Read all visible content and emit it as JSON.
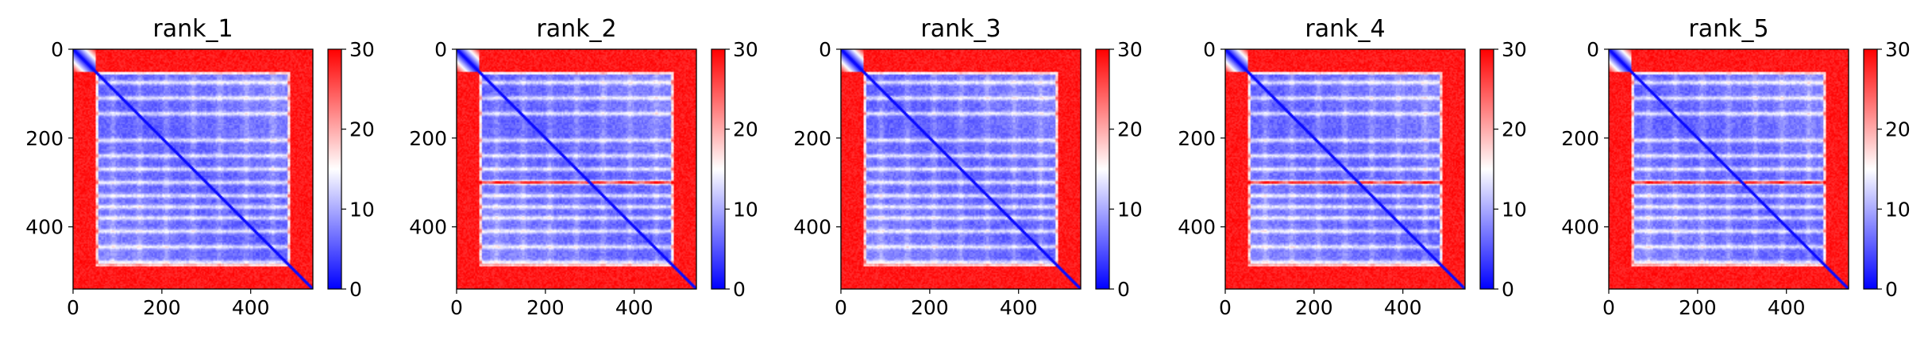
{
  "chart_data": [
    {
      "type": "heatmap",
      "title": "rank_1",
      "xlabel": "",
      "ylabel": "",
      "xlim": [
        0,
        540
      ],
      "ylim": [
        540,
        0
      ],
      "x_ticks": [
        "0",
        "200",
        "400"
      ],
      "y_ticks": [
        "0",
        "200",
        "400"
      ],
      "colorbar": {
        "range": [
          0,
          30
        ],
        "ticks": [
          "0",
          "10",
          "20",
          "30"
        ],
        "colormap": "bwr"
      },
      "matrix_size": 540,
      "edge_region_ends": 50,
      "hot_band_index": null
    },
    {
      "type": "heatmap",
      "title": "rank_2",
      "xlabel": "",
      "ylabel": "",
      "xlim": [
        0,
        540
      ],
      "ylim": [
        540,
        0
      ],
      "x_ticks": [
        "0",
        "200",
        "400"
      ],
      "y_ticks": [
        "0",
        "200",
        "400"
      ],
      "colorbar": {
        "range": [
          0,
          30
        ],
        "ticks": [
          "0",
          "10",
          "20",
          "30"
        ],
        "colormap": "bwr"
      },
      "matrix_size": 540,
      "edge_region_ends": 50,
      "hot_band_index": 300
    },
    {
      "type": "heatmap",
      "title": "rank_3",
      "xlabel": "",
      "ylabel": "",
      "xlim": [
        0,
        540
      ],
      "ylim": [
        540,
        0
      ],
      "x_ticks": [
        "0",
        "200",
        "400"
      ],
      "y_ticks": [
        "0",
        "200",
        "400"
      ],
      "colorbar": {
        "range": [
          0,
          30
        ],
        "ticks": [
          "0",
          "10",
          "20",
          "30"
        ],
        "colormap": "bwr"
      },
      "matrix_size": 540,
      "edge_region_ends": 50,
      "hot_band_index": null
    },
    {
      "type": "heatmap",
      "title": "rank_4",
      "xlabel": "",
      "ylabel": "",
      "xlim": [
        0,
        540
      ],
      "ylim": [
        540,
        0
      ],
      "x_ticks": [
        "0",
        "200",
        "400"
      ],
      "y_ticks": [
        "0",
        "200",
        "400"
      ],
      "colorbar": {
        "range": [
          0,
          30
        ],
        "ticks": [
          "0",
          "10",
          "20",
          "30"
        ],
        "colormap": "bwr"
      },
      "matrix_size": 540,
      "edge_region_ends": 50,
      "hot_band_index": 300
    },
    {
      "type": "heatmap",
      "title": "rank_5",
      "xlabel": "",
      "ylabel": "",
      "xlim": [
        0,
        540
      ],
      "ylim": [
        540,
        0
      ],
      "x_ticks": [
        "0",
        "200",
        "400"
      ],
      "y_ticks": [
        "0",
        "200",
        "400"
      ],
      "colorbar": {
        "range": [
          0,
          30
        ],
        "ticks": [
          "0",
          "10",
          "20",
          "30"
        ],
        "colormap": "bwr"
      },
      "matrix_size": 540,
      "edge_region_ends": 50,
      "hot_band_index": 300
    }
  ]
}
